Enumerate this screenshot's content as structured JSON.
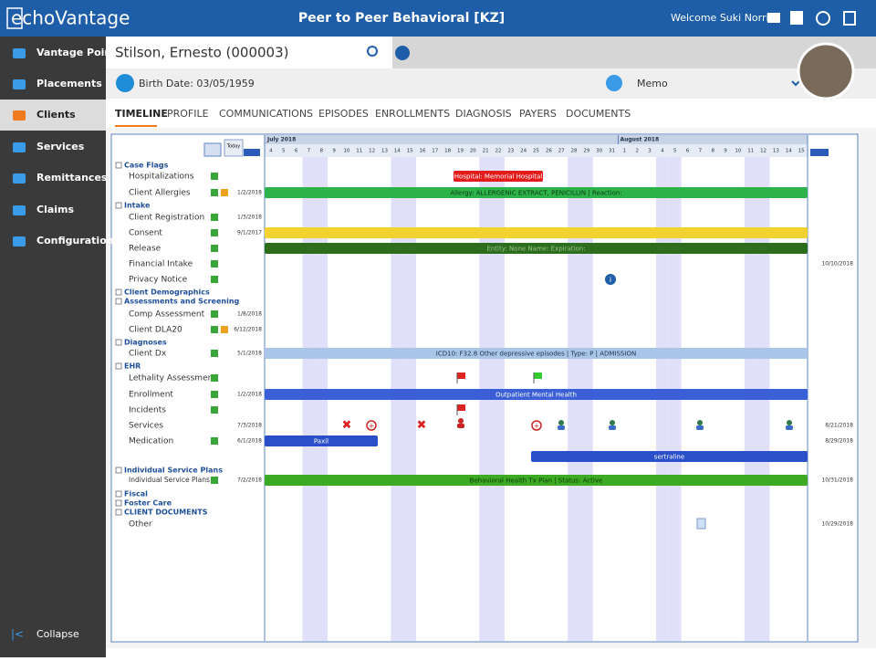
{
  "header": {
    "logo": "echoVantage",
    "title": "Peer to Peer Behavioral [KZ]",
    "welcome": "Welcome Suki Norris"
  },
  "sidebar": {
    "items": [
      "Vantage Point",
      "Placements",
      "Clients",
      "Services",
      "Remittances",
      "Claims",
      "Configuration"
    ],
    "active": 2,
    "collapse": "Collapse"
  },
  "client": {
    "name": "Stilson, Ernesto (000003)",
    "birth": "Birth Date: 03/05/1959",
    "memo": "Memo"
  },
  "tabs": {
    "items": [
      "TIMELINE",
      "PROFILE",
      "COMMUNICATIONS",
      "EPISODES",
      "ENROLLMENTS",
      "DIAGNOSIS",
      "PAYERS",
      "DOCUMENTS"
    ],
    "active": 0
  },
  "timeline": {
    "today": "Today",
    "months": [
      "July 2018",
      "August 2018"
    ],
    "days": [
      "4",
      "5",
      "6",
      "7",
      "8",
      "9",
      "10",
      "11",
      "12",
      "13",
      "14",
      "15",
      "16",
      "17",
      "18",
      "19",
      "20",
      "21",
      "22",
      "23",
      "24",
      "25",
      "26",
      "27",
      "28",
      "29",
      "30",
      "31",
      "1",
      "2",
      "3",
      "4",
      "5",
      "6",
      "7",
      "8",
      "9",
      "10",
      "11",
      "12",
      "13",
      "14",
      "15"
    ],
    "rows": [
      {
        "group": "Case Flags"
      },
      {
        "label": "Hospitalizations",
        "bar": "Hospital: Memorial Hospital"
      },
      {
        "label": "Client Allergies",
        "date": "1/2/2018",
        "bar": "Allergy: ALLERGENIC EXTRACT, PENICILLIN | Reaction:"
      },
      {
        "group": "Intake"
      },
      {
        "label": "Client Registration",
        "date": "1/3/2018"
      },
      {
        "label": "Consent",
        "date": "9/1/2017"
      },
      {
        "label": "Release",
        "bar": "Entity: None Name: Expiration:"
      },
      {
        "label": "Financial Intake",
        "end_date": "10/10/2018"
      },
      {
        "label": "Privacy Notice"
      },
      {
        "group": "Client Demographics"
      },
      {
        "group": "Assessments and Screening"
      },
      {
        "label": "Comp Assessment",
        "date": "1/8/2018"
      },
      {
        "label": "Client DLA20",
        "date": "6/12/2018"
      },
      {
        "group": "Diagnoses"
      },
      {
        "label": "Client Dx",
        "date": "5/1/2018",
        "bar": "ICD10: F32.8 Other depressive episodes | Type: P | ADMISSION"
      },
      {
        "group": "EHR"
      },
      {
        "label": "Lethality Assessment"
      },
      {
        "label": "Enrollment",
        "date": "1/2/2018",
        "bar": "Outpatient Mental Health"
      },
      {
        "label": "Incidents"
      },
      {
        "label": "Services",
        "date": "7/3/2018",
        "end_date": "8/21/2018"
      },
      {
        "label": "Medication",
        "date": "6/1/2018",
        "bar": "Paxil",
        "end_date": "8/29/2018"
      },
      {
        "bar": "sertraline"
      },
      {
        "group": "Individual Service Plans"
      },
      {
        "label": "Individual Service Plans",
        "date": "7/2/2018",
        "bar": "Behavioral Health Tx Plan | Status: Active",
        "end_date": "10/31/2018"
      },
      {
        "group": "Fiscal"
      },
      {
        "group": "Foster Care"
      },
      {
        "group": "CLIENT DOCUMENTS"
      },
      {
        "label": "Other",
        "end_date": "10/29/2018"
      }
    ]
  }
}
